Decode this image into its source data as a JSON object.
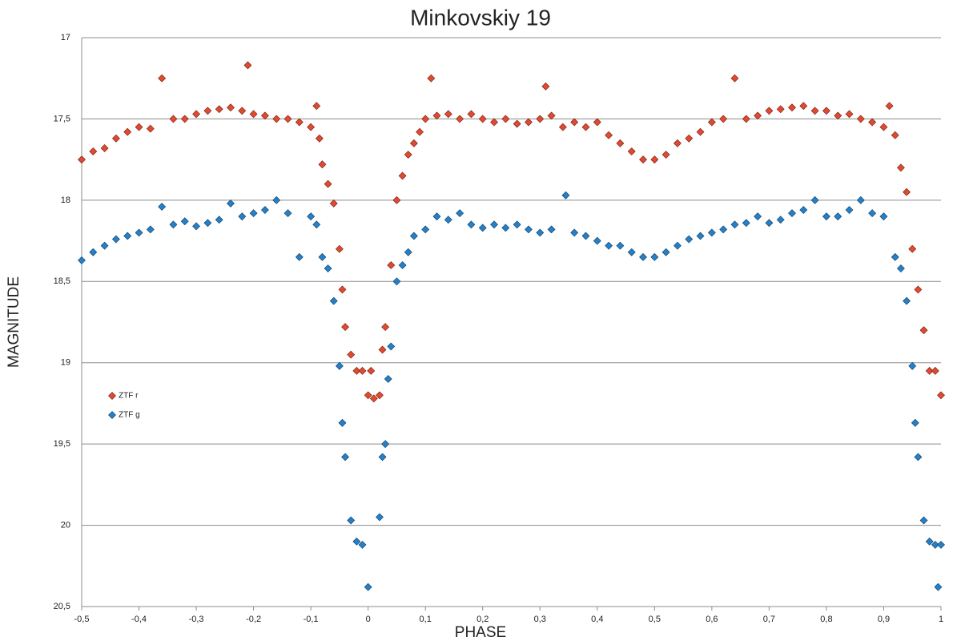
{
  "chart_data": {
    "type": "scatter",
    "title": "Minkovskiy 19",
    "x_label": "PHASE",
    "y_label": "MAGNITUDE",
    "xlim": [
      -0.5,
      1
    ],
    "ylim": [
      17,
      20.5
    ],
    "y_inverted": true,
    "grid": true,
    "legend": "left",
    "xticks": [
      {
        "value": -0.5,
        "label": "-0,5"
      },
      {
        "value": -0.4,
        "label": "-0,4"
      },
      {
        "value": -0.3,
        "label": "-0,3"
      },
      {
        "value": -0.2,
        "label": "-0,2"
      },
      {
        "value": -0.1,
        "label": "-0,1"
      },
      0,
      {
        "value": 0.1,
        "label": "0,1"
      },
      {
        "value": 0.2,
        "label": "0,2"
      },
      {
        "value": 0.3,
        "label": "0,3"
      },
      {
        "value": 0.4,
        "label": "0,4"
      },
      {
        "value": 0.5,
        "label": "0,5"
      },
      {
        "value": 0.6,
        "label": "0,6"
      },
      {
        "value": 0.7,
        "label": "0,7"
      },
      {
        "value": 0.8,
        "label": "0,8"
      },
      {
        "value": 0.9,
        "label": "0,9"
      },
      1
    ],
    "yticks": [
      17,
      {
        "value": 17.5,
        "label": "17,5"
      },
      18,
      {
        "value": 18.5,
        "label": "18,5"
      },
      19,
      {
        "value": 19.5,
        "label": "19,5"
      },
      20,
      {
        "value": 20.5,
        "label": "20,5"
      }
    ],
    "series": [
      {
        "name": "ZTF r",
        "color": "#e04a30",
        "x": [
          -0.5,
          -0.48,
          -0.46,
          -0.44,
          -0.42,
          -0.4,
          -0.38,
          -0.36,
          -0.34,
          -0.32,
          -0.3,
          -0.28,
          -0.26,
          -0.24,
          -0.22,
          -0.21,
          -0.2,
          -0.18,
          -0.16,
          -0.14,
          -0.12,
          -0.1,
          -0.09,
          -0.085,
          -0.08,
          -0.07,
          -0.06,
          -0.05,
          -0.045,
          -0.04,
          -0.03,
          -0.02,
          -0.01,
          0,
          0.005,
          0.01,
          0.02,
          0.025,
          0.03,
          0.04,
          0.05,
          0.06,
          0.07,
          0.08,
          0.09,
          0.1,
          0.11,
          0.12,
          0.14,
          0.16,
          0.18,
          0.2,
          0.22,
          0.24,
          0.26,
          0.28,
          0.3,
          0.31,
          0.32,
          0.34,
          0.36,
          0.38,
          0.4,
          0.42,
          0.44,
          0.46,
          0.48,
          0.5,
          0.52,
          0.54,
          0.56,
          0.58,
          0.6,
          0.62,
          0.64,
          0.66,
          0.68,
          0.7,
          0.72,
          0.74,
          0.76,
          0.78,
          0.8,
          0.82,
          0.84,
          0.86,
          0.88,
          0.9,
          0.91,
          0.92,
          0.93,
          0.94,
          0.95,
          0.96,
          0.97,
          0.98,
          0.99,
          1
        ],
        "values": [
          17.75,
          17.7,
          17.68,
          17.62,
          17.58,
          17.55,
          17.56,
          17.25,
          17.5,
          17.5,
          17.47,
          17.45,
          17.44,
          17.43,
          17.45,
          17.17,
          17.47,
          17.48,
          17.5,
          17.5,
          17.52,
          17.55,
          17.42,
          17.62,
          17.78,
          17.9,
          18.02,
          18.3,
          18.55,
          18.78,
          18.95,
          19.05,
          19.05,
          19.2,
          19.05,
          19.22,
          19.2,
          18.92,
          18.78,
          18.4,
          18,
          17.85,
          17.72,
          17.65,
          17.58,
          17.5,
          17.25,
          17.48,
          17.47,
          17.5,
          17.47,
          17.5,
          17.52,
          17.5,
          17.53,
          17.52,
          17.5,
          17.3,
          17.48,
          17.55,
          17.52,
          17.55,
          17.52,
          17.6,
          17.65,
          17.7,
          17.75,
          17.75,
          17.72,
          17.65,
          17.62,
          17.58,
          17.52,
          17.5,
          17.25,
          17.5,
          17.48,
          17.45,
          17.44,
          17.43,
          17.42,
          17.45,
          17.45,
          17.48,
          17.47,
          17.5,
          17.52,
          17.55,
          17.42,
          17.6,
          17.8,
          17.95,
          18.3,
          18.55,
          18.8,
          19.05,
          19.05,
          19.2
        ]
      },
      {
        "name": "ZTF g",
        "color": "#2580c8",
        "x": [
          -0.5,
          -0.48,
          -0.46,
          -0.44,
          -0.42,
          -0.4,
          -0.38,
          -0.36,
          -0.34,
          -0.32,
          -0.3,
          -0.28,
          -0.26,
          -0.24,
          -0.22,
          -0.2,
          -0.18,
          -0.16,
          -0.14,
          -0.12,
          -0.1,
          -0.09,
          -0.08,
          -0.07,
          -0.06,
          -0.05,
          -0.045,
          -0.04,
          -0.03,
          -0.02,
          -0.01,
          0,
          0.02,
          0.025,
          0.03,
          0.035,
          0.04,
          0.05,
          0.06,
          0.07,
          0.08,
          0.1,
          0.12,
          0.14,
          0.16,
          0.18,
          0.2,
          0.22,
          0.24,
          0.26,
          0.28,
          0.3,
          0.32,
          0.345,
          0.36,
          0.38,
          0.4,
          0.42,
          0.44,
          0.46,
          0.48,
          0.5,
          0.52,
          0.54,
          0.56,
          0.58,
          0.6,
          0.62,
          0.64,
          0.66,
          0.68,
          0.7,
          0.72,
          0.74,
          0.76,
          0.78,
          0.8,
          0.82,
          0.84,
          0.86,
          0.88,
          0.9,
          0.92,
          0.93,
          0.94,
          0.95,
          0.955,
          0.96,
          0.97,
          0.98,
          0.99,
          0.995,
          1
        ],
        "values": [
          18.37,
          18.32,
          18.28,
          18.24,
          18.22,
          18.2,
          18.18,
          18.04,
          18.15,
          18.13,
          18.16,
          18.14,
          18.12,
          18.02,
          18.1,
          18.08,
          18.06,
          18,
          18.08,
          18.35,
          18.1,
          18.15,
          18.35,
          18.42,
          18.62,
          19.02,
          19.37,
          19.58,
          19.97,
          20.1,
          20.12,
          20.38,
          19.95,
          19.58,
          19.5,
          19.1,
          18.9,
          18.5,
          18.4,
          18.32,
          18.22,
          18.18,
          18.1,
          18.12,
          18.08,
          18.15,
          18.17,
          18.15,
          18.17,
          18.15,
          18.18,
          18.2,
          18.18,
          17.97,
          18.2,
          18.22,
          18.25,
          18.28,
          18.28,
          18.32,
          18.35,
          18.35,
          18.32,
          18.28,
          18.24,
          18.22,
          18.2,
          18.18,
          18.15,
          18.14,
          18.1,
          18.14,
          18.12,
          18.08,
          18.06,
          18,
          18.1,
          18.1,
          18.06,
          18,
          18.08,
          18.1,
          18.35,
          18.42,
          18.62,
          19.02,
          19.37,
          19.58,
          19.97,
          20.1,
          20.12,
          20.38,
          20.12
        ]
      }
    ]
  }
}
